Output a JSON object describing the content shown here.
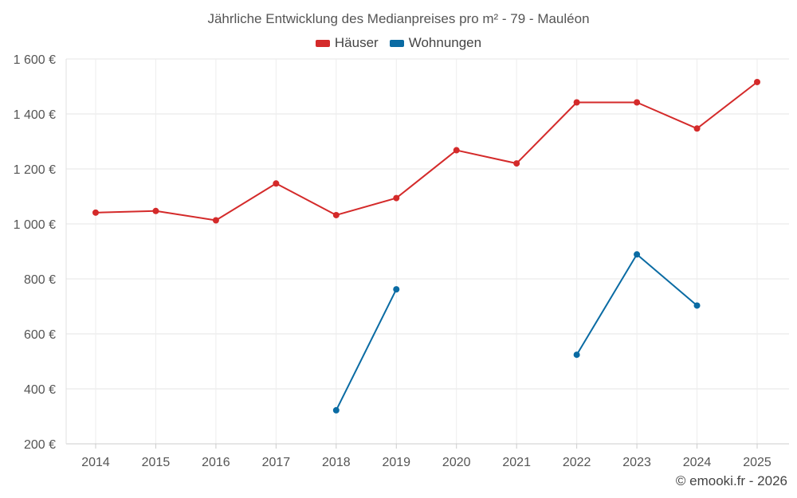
{
  "chart_data": {
    "type": "line",
    "title": "Jährliche Entwicklung des Medianpreises pro m² - 79 - Mauléon",
    "categories": [
      "2014",
      "2015",
      "2016",
      "2017",
      "2018",
      "2019",
      "2020",
      "2021",
      "2022",
      "2023",
      "2024",
      "2025"
    ],
    "series": [
      {
        "name": "Häuser",
        "color": "#d42a2a",
        "values": [
          1041,
          1047,
          1013,
          1147,
          1032,
          1094,
          1268,
          1220,
          1442,
          1442,
          1347,
          1516
        ]
      },
      {
        "name": "Wohnungen",
        "color": "#0a6ba3",
        "values": [
          null,
          null,
          null,
          null,
          322,
          762,
          null,
          null,
          524,
          889,
          703,
          null
        ]
      }
    ],
    "y_ticks": [
      "1 600 €",
      "1 400 €",
      "1 200 €",
      "1 000 €",
      "800 €",
      "600 €",
      "400 €",
      "200 €"
    ],
    "y_tick_values": [
      1600,
      1400,
      1200,
      1000,
      800,
      600,
      400,
      200
    ],
    "ylim": [
      200,
      1600
    ],
    "xlabel": "",
    "ylabel": "",
    "grid": true,
    "legend_position": "top-center"
  },
  "footer": {
    "copyright": "© emooki.fr - 2026"
  }
}
